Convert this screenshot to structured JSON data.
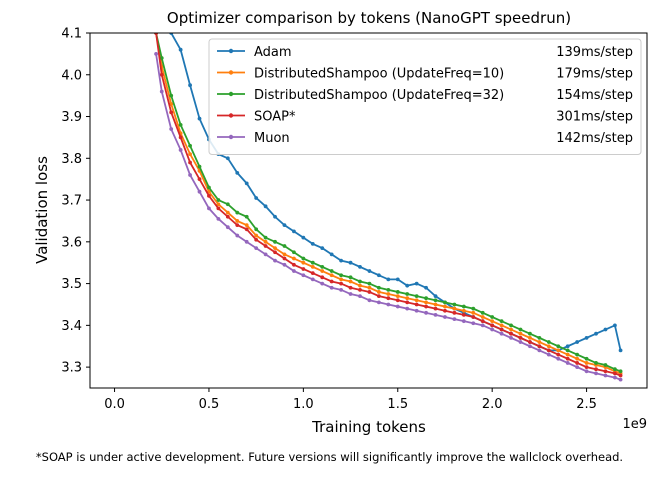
{
  "chart_data": {
    "type": "line",
    "title": "Optimizer comparison by tokens (NanoGPT speedrun)",
    "xlabel": "Training tokens",
    "ylabel": "Validation loss",
    "x_offset_label": "1e9",
    "xlim": [
      -0.13,
      2.82
    ],
    "ylim": [
      3.25,
      4.1
    ],
    "xticks": [
      "0.0",
      "0.5",
      "1.0",
      "1.5",
      "2.0",
      "2.5"
    ],
    "yticks": [
      "3.3",
      "3.4",
      "3.5",
      "3.6",
      "3.7",
      "3.8",
      "3.9",
      "4.0",
      "4.1"
    ],
    "grid": false,
    "legend_position": "top-right",
    "series": [
      {
        "name": "Adam",
        "timing": "139ms/step",
        "color": "#1f77b4",
        "x": [
          0.3,
          0.35,
          0.4,
          0.45,
          0.5,
          0.55,
          0.6,
          0.65,
          0.7,
          0.75,
          0.8,
          0.85,
          0.9,
          0.95,
          1.0,
          1.05,
          1.1,
          1.15,
          1.2,
          1.25,
          1.3,
          1.35,
          1.4,
          1.45,
          1.5,
          1.55,
          1.6,
          1.65,
          1.7,
          1.75,
          1.8,
          1.85,
          1.9,
          1.95,
          2.0,
          2.05,
          2.1,
          2.15,
          2.2,
          2.25,
          2.3,
          2.35,
          2.4,
          2.45,
          2.5,
          2.55,
          2.6,
          2.65,
          2.68
        ],
        "y": [
          4.1,
          4.06,
          3.975,
          3.895,
          3.845,
          3.81,
          3.8,
          3.765,
          3.74,
          3.705,
          3.685,
          3.66,
          3.64,
          3.625,
          3.61,
          3.595,
          3.585,
          3.57,
          3.555,
          3.55,
          3.54,
          3.53,
          3.52,
          3.51,
          3.51,
          3.495,
          3.5,
          3.49,
          3.47,
          3.455,
          3.44,
          3.43,
          3.42,
          3.41,
          3.4,
          3.39,
          3.38,
          3.37,
          3.36,
          3.35,
          3.34,
          3.34,
          3.35,
          3.36,
          3.37,
          3.38,
          3.39,
          3.4,
          3.34
        ]
      },
      {
        "name": "DistributedShampoo (UpdateFreq=10)",
        "timing": "179ms/step",
        "color": "#ff7f0e",
        "x": [
          0.22,
          0.25,
          0.3,
          0.35,
          0.4,
          0.45,
          0.5,
          0.55,
          0.6,
          0.65,
          0.7,
          0.75,
          0.8,
          0.85,
          0.9,
          0.95,
          1.0,
          1.05,
          1.1,
          1.15,
          1.2,
          1.25,
          1.3,
          1.35,
          1.4,
          1.45,
          1.5,
          1.55,
          1.6,
          1.65,
          1.7,
          1.75,
          1.8,
          1.85,
          1.9,
          1.95,
          2.0,
          2.05,
          2.1,
          2.15,
          2.2,
          2.25,
          2.3,
          2.35,
          2.4,
          2.45,
          2.5,
          2.55,
          2.6,
          2.65,
          2.68
        ],
        "y": [
          4.1,
          4.02,
          3.93,
          3.86,
          3.81,
          3.77,
          3.72,
          3.69,
          3.67,
          3.65,
          3.64,
          3.615,
          3.6,
          3.585,
          3.57,
          3.56,
          3.55,
          3.54,
          3.53,
          3.52,
          3.51,
          3.505,
          3.495,
          3.49,
          3.48,
          3.475,
          3.47,
          3.465,
          3.46,
          3.455,
          3.45,
          3.445,
          3.44,
          3.435,
          3.43,
          3.42,
          3.41,
          3.4,
          3.39,
          3.38,
          3.37,
          3.36,
          3.35,
          3.34,
          3.33,
          3.32,
          3.31,
          3.305,
          3.3,
          3.29,
          3.285
        ]
      },
      {
        "name": "DistributedShampoo (UpdateFreq=32)",
        "timing": "154ms/step",
        "color": "#2ca02c",
        "x": [
          0.22,
          0.25,
          0.3,
          0.35,
          0.4,
          0.45,
          0.5,
          0.55,
          0.6,
          0.65,
          0.7,
          0.75,
          0.8,
          0.85,
          0.9,
          0.95,
          1.0,
          1.05,
          1.1,
          1.15,
          1.2,
          1.25,
          1.3,
          1.35,
          1.4,
          1.45,
          1.5,
          1.55,
          1.6,
          1.65,
          1.7,
          1.75,
          1.8,
          1.85,
          1.9,
          1.95,
          2.0,
          2.05,
          2.1,
          2.15,
          2.2,
          2.25,
          2.3,
          2.35,
          2.4,
          2.45,
          2.5,
          2.55,
          2.6,
          2.65,
          2.68
        ],
        "y": [
          4.1,
          4.04,
          3.95,
          3.88,
          3.83,
          3.78,
          3.73,
          3.7,
          3.69,
          3.67,
          3.66,
          3.63,
          3.61,
          3.6,
          3.59,
          3.575,
          3.56,
          3.55,
          3.54,
          3.53,
          3.52,
          3.515,
          3.505,
          3.5,
          3.49,
          3.485,
          3.48,
          3.475,
          3.47,
          3.465,
          3.46,
          3.455,
          3.45,
          3.445,
          3.44,
          3.43,
          3.42,
          3.41,
          3.4,
          3.39,
          3.38,
          3.37,
          3.36,
          3.35,
          3.34,
          3.33,
          3.32,
          3.31,
          3.305,
          3.295,
          3.29
        ]
      },
      {
        "name": "SOAP*",
        "timing": "301ms/step",
        "color": "#d62728",
        "x": [
          0.22,
          0.25,
          0.3,
          0.35,
          0.4,
          0.45,
          0.5,
          0.55,
          0.6,
          0.65,
          0.7,
          0.75,
          0.8,
          0.85,
          0.9,
          0.95,
          1.0,
          1.05,
          1.1,
          1.15,
          1.2,
          1.25,
          1.3,
          1.35,
          1.4,
          1.45,
          1.5,
          1.55,
          1.6,
          1.65,
          1.7,
          1.75,
          1.8,
          1.85,
          1.9,
          1.95,
          2.0,
          2.05,
          2.1,
          2.15,
          2.2,
          2.25,
          2.3,
          2.35,
          2.4,
          2.45,
          2.5,
          2.55,
          2.6,
          2.65,
          2.68
        ],
        "y": [
          4.1,
          4.0,
          3.91,
          3.85,
          3.79,
          3.75,
          3.71,
          3.68,
          3.66,
          3.64,
          3.63,
          3.605,
          3.59,
          3.575,
          3.56,
          3.545,
          3.535,
          3.525,
          3.515,
          3.505,
          3.5,
          3.49,
          3.485,
          3.48,
          3.47,
          3.465,
          3.46,
          3.455,
          3.45,
          3.445,
          3.44,
          3.435,
          3.43,
          3.425,
          3.42,
          3.41,
          3.4,
          3.39,
          3.38,
          3.37,
          3.36,
          3.35,
          3.34,
          3.33,
          3.32,
          3.31,
          3.3,
          3.295,
          3.29,
          3.285,
          3.28
        ]
      },
      {
        "name": "Muon",
        "timing": "142ms/step",
        "color": "#9467bd",
        "x": [
          0.22,
          0.25,
          0.3,
          0.35,
          0.4,
          0.45,
          0.5,
          0.55,
          0.6,
          0.65,
          0.7,
          0.75,
          0.8,
          0.85,
          0.9,
          0.95,
          1.0,
          1.05,
          1.1,
          1.15,
          1.2,
          1.25,
          1.3,
          1.35,
          1.4,
          1.45,
          1.5,
          1.55,
          1.6,
          1.65,
          1.7,
          1.75,
          1.8,
          1.85,
          1.9,
          1.95,
          2.0,
          2.05,
          2.1,
          2.15,
          2.2,
          2.25,
          2.3,
          2.35,
          2.4,
          2.45,
          2.5,
          2.55,
          2.6,
          2.65,
          2.68
        ],
        "y": [
          4.05,
          3.96,
          3.87,
          3.82,
          3.76,
          3.72,
          3.68,
          3.655,
          3.635,
          3.615,
          3.6,
          3.585,
          3.57,
          3.555,
          3.545,
          3.53,
          3.52,
          3.51,
          3.5,
          3.49,
          3.485,
          3.475,
          3.47,
          3.46,
          3.455,
          3.45,
          3.445,
          3.44,
          3.435,
          3.43,
          3.425,
          3.42,
          3.415,
          3.41,
          3.405,
          3.4,
          3.39,
          3.38,
          3.37,
          3.36,
          3.35,
          3.34,
          3.33,
          3.32,
          3.31,
          3.3,
          3.29,
          3.285,
          3.28,
          3.275,
          3.27
        ]
      }
    ]
  },
  "footnote": "*SOAP is under active development. Future versions will significantly improve the wallclock overhead."
}
